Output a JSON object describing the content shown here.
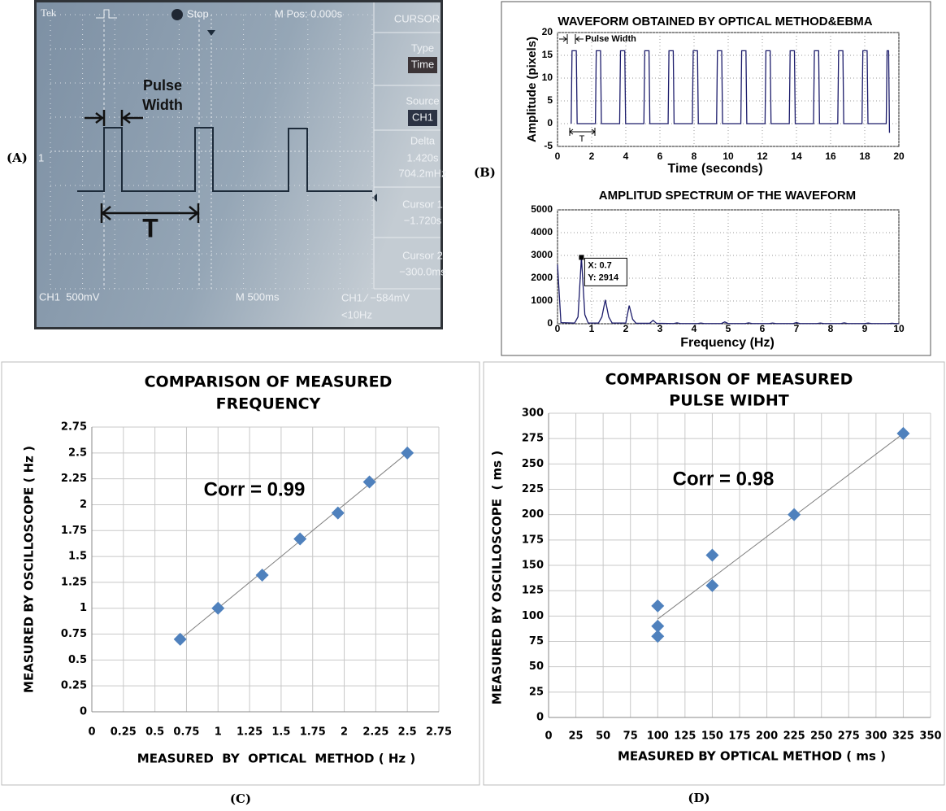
{
  "chart_data": [
    {
      "type": "oscilloscope",
      "panel_label": "(A)",
      "header": {
        "brand": "Tek",
        "state": "Stop",
        "position": "M Pos: 0.000s"
      },
      "menu_title": "CURSOR",
      "menu": [
        {
          "label": "Type",
          "lines": [
            "Time"
          ]
        },
        {
          "label": "Source",
          "lines": [
            "CH1"
          ]
        },
        {
          "label": "Delta",
          "lines": [
            "1.420s",
            "704.2mHz"
          ]
        },
        {
          "label": "Cursor 1",
          "lines": [
            "−1.720s"
          ]
        },
        {
          "label": "Cursor 2",
          "lines": [
            "−300.0ms"
          ]
        }
      ],
      "footer": {
        "channel": "CH1  500mV",
        "timebase": "M 500ms",
        "trigger": "CH1 ∕ −584mV",
        "filter": "<10Hz"
      },
      "annotations": {
        "pulse_width": [
          "Pulse",
          "Width"
        ],
        "period": "T"
      },
      "marker": "1"
    },
    {
      "type": "line",
      "panel_label": "(B)",
      "title": "WAVEFORM OBTAINED BY OPTICAL METHOD&EBMA",
      "x_label": "Time (seconds)",
      "y_label": "Amplitude (pixels)",
      "color": "#1c1c6b",
      "grid": true,
      "xlim": [
        0,
        20
      ],
      "ylim": [
        -5,
        20
      ],
      "xticks": [
        0,
        2,
        4,
        6,
        8,
        10,
        12,
        14,
        16,
        18,
        20
      ],
      "yticks": [
        -5,
        0,
        5,
        10,
        15,
        20
      ],
      "annotations": {
        "pulse_width": "Pulse Width",
        "period": "T"
      },
      "x": [
        0.8,
        0.85,
        1.1,
        1.15,
        2.22,
        2.27,
        2.52,
        2.57,
        3.64,
        3.69,
        3.94,
        3.99,
        5.06,
        5.11,
        5.36,
        5.41,
        6.48,
        6.53,
        6.78,
        6.83,
        7.9,
        7.95,
        8.2,
        8.25,
        9.32,
        9.37,
        9.62,
        9.67,
        10.74,
        10.79,
        11.04,
        11.09,
        12.16,
        12.21,
        12.46,
        12.51,
        13.58,
        13.63,
        13.88,
        13.93,
        15,
        15.05,
        15.3,
        15.35,
        16.42,
        16.47,
        16.72,
        16.77,
        17.84,
        17.89,
        18.14,
        18.19,
        19.26,
        19.31,
        19.4,
        19.45
      ],
      "values": [
        0,
        16,
        16,
        0,
        0,
        16,
        16,
        0,
        0,
        16,
        16,
        0,
        0,
        16,
        16,
        0,
        0,
        16,
        16,
        0,
        0,
        16,
        16,
        0,
        0,
        16,
        16,
        0,
        0,
        16,
        16,
        0,
        0,
        16,
        16,
        0,
        0,
        16,
        16,
        0,
        0,
        16,
        16,
        0,
        0,
        16,
        16,
        0,
        0,
        16,
        16,
        0,
        0,
        16,
        16,
        -2
      ]
    },
    {
      "type": "line",
      "title": "AMPLITUD SPECTRUM OF THE WAVEFORM",
      "x_label": "Frequency (Hz)",
      "color": "#1c1c6b",
      "grid": true,
      "xlim": [
        0,
        10
      ],
      "ylim": [
        0,
        5000
      ],
      "xticks": [
        0,
        1,
        2,
        3,
        4,
        5,
        6,
        7,
        8,
        9,
        10
      ],
      "yticks": [
        0,
        1000,
        2000,
        3000,
        4000,
        5000
      ],
      "datatip": {
        "x": 0.7,
        "y": 2914,
        "labels": [
          "X: 0.7",
          "Y: 2914"
        ]
      },
      "x": [
        0,
        0.1,
        0.5,
        0.6,
        0.7,
        0.8,
        0.9,
        1.2,
        1.3,
        1.4,
        1.5,
        1.6,
        2.0,
        2.1,
        2.2,
        2.3,
        2.7,
        2.8,
        2.9,
        3.4,
        3.5,
        3.6,
        4.1,
        4.2,
        4.3,
        4.8,
        4.9,
        5.0,
        5.5,
        5.6,
        5.7,
        6.2,
        6.3,
        6.4,
        6.9,
        7.0,
        7.1,
        7.6,
        7.7,
        7.8,
        8.3,
        8.4,
        8.5,
        9.0,
        9.1,
        9.2,
        9.7,
        9.8,
        9.9,
        10
      ],
      "values": [
        2600,
        50,
        30,
        300,
        2914,
        400,
        30,
        30,
        300,
        1050,
        300,
        30,
        30,
        800,
        200,
        20,
        20,
        150,
        20,
        10,
        40,
        10,
        10,
        30,
        10,
        10,
        80,
        10,
        10,
        40,
        10,
        10,
        30,
        10,
        10,
        50,
        10,
        10,
        30,
        10,
        10,
        40,
        10,
        10,
        30,
        10,
        10,
        20,
        10,
        10
      ]
    },
    {
      "type": "scatter",
      "panel_label": "(C)",
      "title": [
        "COMPARISON OF MEASURED",
        "FREQUENCY"
      ],
      "x_label": "MEASURED  BY  OPTICAL  METHOD ( Hz )",
      "y_label": "MEASURED BY OSCILLOSCOPE ( Hz )",
      "annotation": "Corr = 0.99",
      "color": "#4f81bd",
      "grid": true,
      "xlim": [
        0,
        2.75
      ],
      "ylim": [
        0,
        2.75
      ],
      "xticks": [
        0,
        0.25,
        0.5,
        0.75,
        1,
        1.25,
        1.5,
        1.75,
        2,
        2.25,
        2.5,
        2.75
      ],
      "yticks": [
        0,
        0.25,
        0.5,
        0.75,
        1,
        1.25,
        1.5,
        1.75,
        2,
        2.25,
        2.5,
        2.75
      ],
      "x": [
        0.7,
        1,
        1.35,
        1.65,
        1.95,
        2.2,
        2.5
      ],
      "values": [
        0.7,
        1,
        1.32,
        1.67,
        1.92,
        2.22,
        2.5
      ],
      "trendline": {
        "color": "#808080",
        "x": [
          0.7,
          2.5
        ],
        "values": [
          0.7,
          2.5
        ]
      }
    },
    {
      "type": "scatter",
      "panel_label": "(D)",
      "title": [
        "COMPARISON OF MEASURED",
        "PULSE WIDHT"
      ],
      "x_label": "MEASURED BY OPTICAL METHOD ( ms )",
      "y_label": "MEASURED BY OSCILLOSCOPE  ( ms )",
      "annotation": "Corr = 0.98",
      "color": "#4f81bd",
      "grid": true,
      "xlim": [
        0,
        350
      ],
      "ylim": [
        0,
        300
      ],
      "xticks": [
        0,
        25,
        50,
        75,
        100,
        125,
        150,
        175,
        200,
        225,
        250,
        275,
        300,
        325,
        350
      ],
      "yticks": [
        0,
        25,
        50,
        75,
        100,
        125,
        150,
        175,
        200,
        225,
        250,
        275,
        300
      ],
      "x": [
        100,
        100,
        100,
        150,
        150,
        225,
        325
      ],
      "values": [
        80,
        90,
        110,
        130,
        160,
        200,
        280
      ],
      "trendline": {
        "color": "#808080",
        "x": [
          100,
          325
        ],
        "values": [
          97,
          280
        ]
      }
    }
  ]
}
